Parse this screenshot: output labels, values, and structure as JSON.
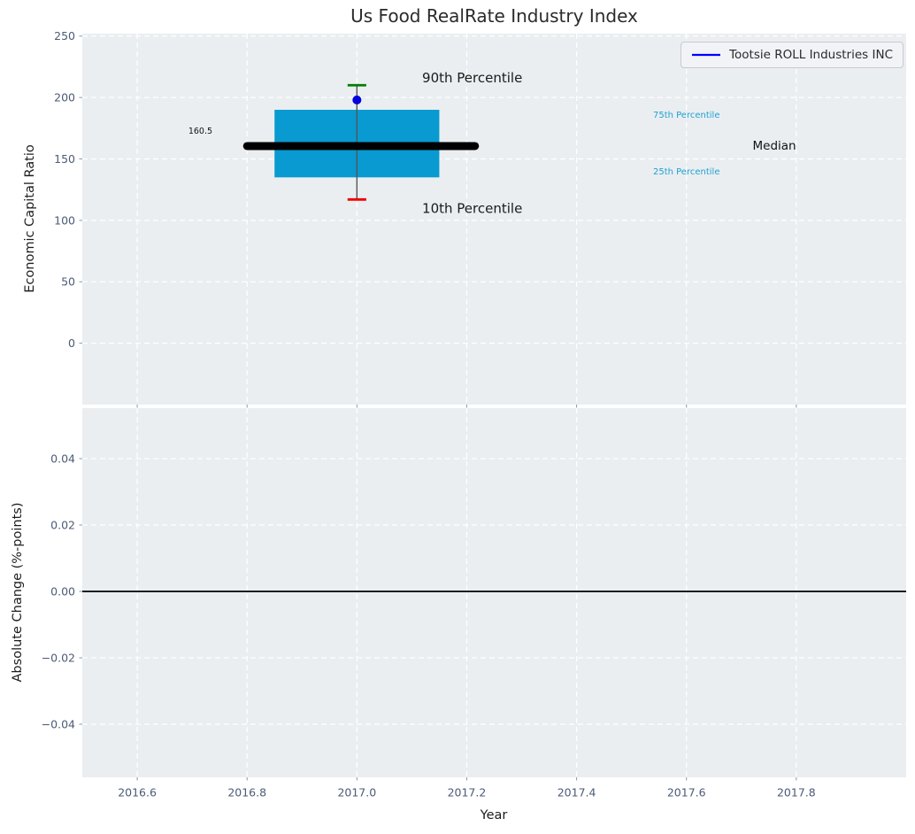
{
  "colors": {
    "background": "#eaeef1",
    "grid": "#ffffff",
    "tick_label": "#4c5b76",
    "tick_mark": "#8a97a8",
    "text_dark": "#1a1a1a",
    "percentile_label": "#21a1d2",
    "box_fill": "#089ad0",
    "median_line": "#000000",
    "whisker": "#555555",
    "p90_cap": "#008000",
    "p10_cap": "#ee0000",
    "marker": "#0000dd",
    "legend_line": "#0000ff",
    "zero_line": "#000000"
  },
  "chart_data": [
    {
      "type": "box",
      "title": "Us Food RealRate Industry Index",
      "ylabel": "Economic Capital Ratio",
      "xlim": [
        2016.5,
        2018.0
      ],
      "ylim": [
        -50,
        252
      ],
      "grid": "white dashed, both axes",
      "xticks": {
        "values": [
          2016.6,
          2016.8,
          2017.0,
          2017.2,
          2017.4,
          2017.6,
          2017.8
        ],
        "labels_visible": false
      },
      "yticks": {
        "values": [
          0,
          50,
          100,
          150,
          200,
          250
        ],
        "labels": [
          "0",
          "50",
          "100",
          "150",
          "200",
          "250"
        ]
      },
      "legend": {
        "label": "Tootsie ROLL Industries INC",
        "location": "upper right"
      },
      "boxplot": {
        "x_center": 2017.0,
        "box_left": 2016.85,
        "box_right": 2017.15,
        "median_line_left": 2016.8,
        "median_line_right": 2017.215,
        "cap_halfwidth": 0.017,
        "p10": 117,
        "p25": 135,
        "median": 160.5,
        "p75": 190,
        "p90": 210,
        "median_value_label": "160.5"
      },
      "company_point": {
        "x": 2017.0,
        "y": 198
      },
      "annotations": [
        {
          "text": "90th Percentile",
          "x": 2017.21,
          "y": 216,
          "color": "#1a1a1a",
          "font_size": 15,
          "anchor": "middle"
        },
        {
          "text": "10th Percentile",
          "x": 2017.21,
          "y": 110,
          "color": "#1a1a1a",
          "font_size": 15,
          "anchor": "middle"
        },
        {
          "text": "75th Percentile",
          "x": 2017.6,
          "y": 186,
          "color": "#21a1d2",
          "font_size": 10,
          "anchor": "middle"
        },
        {
          "text": "25th Percentile",
          "x": 2017.6,
          "y": 140,
          "color": "#21a1d2",
          "font_size": 10,
          "anchor": "middle"
        },
        {
          "text": "Median",
          "x": 2017.76,
          "y": 161,
          "color": "#111111",
          "font_size": 13.5,
          "anchor": "middle"
        },
        {
          "text": "160.5",
          "x": 2016.715,
          "y": 173,
          "color": "#111111",
          "font_size": 9.5,
          "anchor": "middle"
        }
      ]
    },
    {
      "type": "line",
      "ylabel": "Absolute Change (%-points)",
      "xlabel": "Year",
      "xlim": [
        2016.5,
        2018.0
      ],
      "ylim": [
        -0.056,
        0.0552
      ],
      "grid": "white dashed, both axes",
      "xticks": {
        "values": [
          2016.6,
          2016.8,
          2017.0,
          2017.2,
          2017.4,
          2017.6,
          2017.8
        ],
        "labels": [
          "2016.6",
          "2016.8",
          "2017.0",
          "2017.2",
          "2017.4",
          "2017.6",
          "2017.8"
        ]
      },
      "yticks": {
        "values": [
          0.04,
          0.02,
          0,
          -0.02,
          -0.04
        ],
        "labels": [
          "0.04",
          "0.02",
          "0.00",
          "−0.02",
          "−0.04"
        ]
      },
      "zero_line": {
        "y": 0
      },
      "series": []
    }
  ]
}
